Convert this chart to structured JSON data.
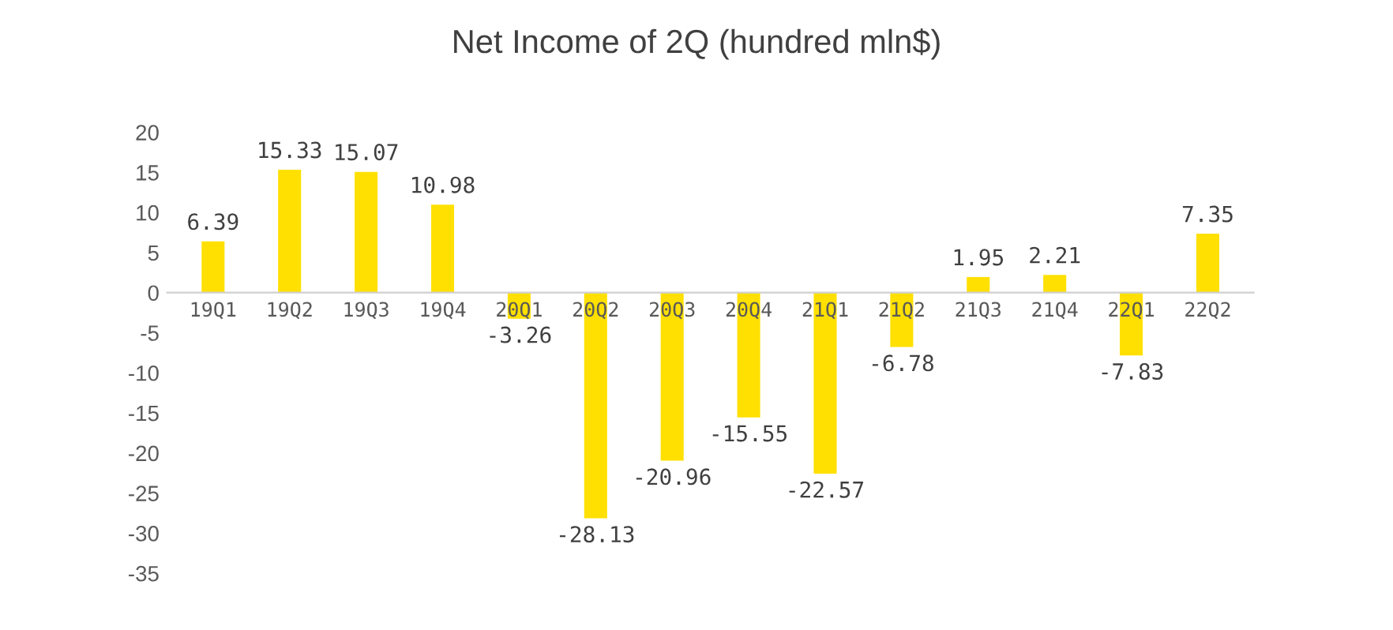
{
  "chart_data": {
    "type": "bar",
    "title": "Net Income of 2Q (hundred mln$)",
    "categories": [
      "19Q1",
      "19Q2",
      "19Q3",
      "19Q4",
      "20Q1",
      "20Q2",
      "20Q3",
      "20Q4",
      "21Q1",
      "21Q2",
      "21Q3",
      "21Q4",
      "22Q1",
      "22Q2"
    ],
    "values": [
      6.39,
      15.33,
      15.07,
      10.98,
      -3.26,
      -28.13,
      -20.96,
      -15.55,
      -22.57,
      -6.78,
      1.95,
      2.21,
      -7.83,
      7.35
    ],
    "color": "#ffe000",
    "ylim": [
      -35,
      20
    ],
    "yticks": [
      -35,
      -30,
      -25,
      -20,
      -15,
      -10,
      -5,
      0,
      5,
      10,
      15,
      20
    ],
    "data_labels": true,
    "grid": false,
    "legend": false
  }
}
